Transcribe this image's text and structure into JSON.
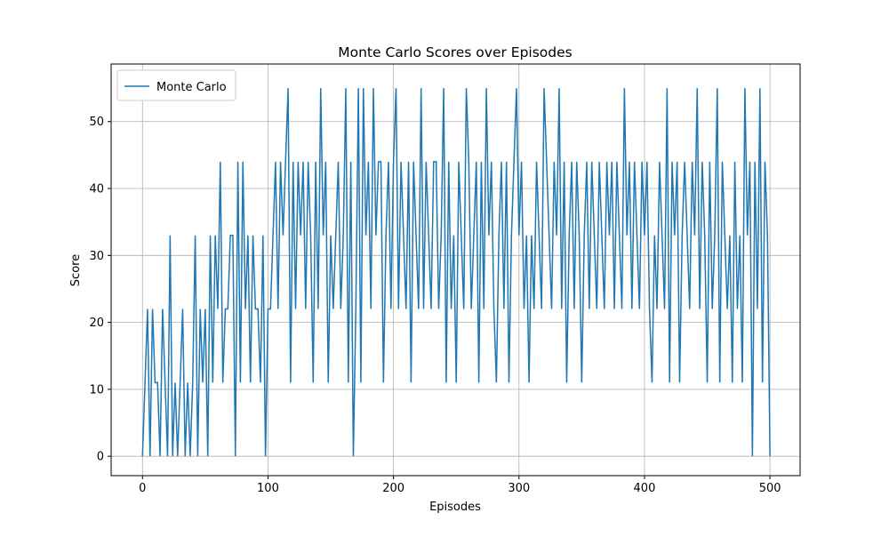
{
  "chart_data": {
    "type": "line",
    "title": "Monte Carlo Scores over Episodes",
    "xlabel": "Episodes",
    "ylabel": "Score",
    "x": [
      0,
      2,
      4,
      6,
      8,
      10,
      12,
      14,
      16,
      18,
      20,
      22,
      24,
      26,
      28,
      30,
      32,
      34,
      36,
      38,
      40,
      42,
      44,
      46,
      48,
      50,
      52,
      54,
      56,
      58,
      60,
      62,
      64,
      66,
      68,
      70,
      72,
      74,
      76,
      78,
      80,
      82,
      84,
      86,
      88,
      90,
      92,
      94,
      96,
      98,
      100,
      102,
      104,
      106,
      108,
      110,
      112,
      114,
      116,
      118,
      120,
      122,
      124,
      126,
      128,
      130,
      132,
      134,
      136,
      138,
      140,
      142,
      144,
      146,
      148,
      150,
      152,
      154,
      156,
      158,
      160,
      162,
      164,
      166,
      168,
      170,
      172,
      174,
      176,
      178,
      180,
      182,
      184,
      186,
      188,
      190,
      192,
      194,
      196,
      198,
      200,
      202,
      204,
      206,
      208,
      210,
      212,
      214,
      216,
      218,
      220,
      222,
      224,
      226,
      228,
      230,
      232,
      234,
      236,
      238,
      240,
      242,
      244,
      246,
      248,
      250,
      252,
      254,
      256,
      258,
      260,
      262,
      264,
      266,
      268,
      270,
      272,
      274,
      276,
      278,
      280,
      282,
      284,
      286,
      288,
      290,
      292,
      294,
      296,
      298,
      300,
      302,
      304,
      306,
      308,
      310,
      312,
      314,
      316,
      318,
      320,
      322,
      324,
      326,
      328,
      330,
      332,
      334,
      336,
      338,
      340,
      342,
      344,
      346,
      348,
      350,
      352,
      354,
      356,
      358,
      360,
      362,
      364,
      366,
      368,
      370,
      372,
      374,
      376,
      378,
      380,
      382,
      384,
      386,
      388,
      390,
      392,
      394,
      396,
      398,
      400,
      402,
      404,
      406,
      408,
      410,
      412,
      414,
      416,
      418,
      420,
      422,
      424,
      426,
      428,
      430,
      432,
      434,
      436,
      438,
      440,
      442,
      444,
      446,
      448,
      450,
      452,
      454,
      456,
      458,
      460,
      462,
      464,
      466,
      468,
      470,
      472,
      474,
      476,
      478,
      480,
      482,
      484,
      486,
      488,
      490,
      492,
      494,
      496,
      498,
      500
    ],
    "series": [
      {
        "name": "Monte Carlo",
        "color": "#1f77b4",
        "values": [
          0,
          11,
          22,
          0,
          22,
          11,
          11,
          0,
          22,
          11,
          0,
          33,
          0,
          11,
          0,
          11,
          22,
          0,
          11,
          0,
          11,
          33,
          0,
          22,
          11,
          22,
          0,
          33,
          11,
          33,
          22,
          44,
          11,
          22,
          22,
          33,
          33,
          0,
          44,
          11,
          44,
          22,
          33,
          11,
          33,
          22,
          22,
          11,
          33,
          0,
          22,
          22,
          33,
          44,
          22,
          44,
          33,
          44,
          55,
          11,
          44,
          22,
          44,
          33,
          44,
          22,
          44,
          33,
          11,
          44,
          22,
          55,
          33,
          44,
          11,
          33,
          22,
          33,
          44,
          22,
          33,
          55,
          11,
          44,
          0,
          22,
          55,
          11,
          55,
          33,
          44,
          22,
          55,
          33,
          44,
          44,
          11,
          33,
          44,
          22,
          44,
          55,
          22,
          44,
          33,
          22,
          44,
          11,
          44,
          33,
          22,
          55,
          22,
          44,
          33,
          22,
          44,
          44,
          22,
          33,
          55,
          11,
          44,
          22,
          33,
          11,
          44,
          33,
          22,
          55,
          44,
          22,
          33,
          44,
          11,
          44,
          22,
          55,
          33,
          44,
          22,
          11,
          33,
          44,
          22,
          44,
          11,
          33,
          44,
          55,
          33,
          44,
          22,
          33,
          11,
          33,
          22,
          44,
          33,
          22,
          55,
          44,
          33,
          22,
          44,
          33,
          55,
          22,
          44,
          11,
          33,
          44,
          22,
          44,
          33,
          11,
          33,
          44,
          22,
          44,
          33,
          22,
          44,
          33,
          22,
          44,
          33,
          44,
          22,
          44,
          33,
          22,
          55,
          33,
          44,
          22,
          44,
          33,
          22,
          44,
          33,
          44,
          22,
          11,
          33,
          22,
          44,
          33,
          22,
          55,
          11,
          44,
          33,
          44,
          11,
          33,
          44,
          33,
          22,
          44,
          33,
          55,
          22,
          44,
          33,
          11,
          44,
          22,
          33,
          55,
          11,
          44,
          33,
          22,
          33,
          11,
          44,
          22,
          33,
          11,
          55,
          33,
          44,
          0,
          44,
          22,
          55,
          11,
          44,
          33,
          0
        ]
      }
    ],
    "xlim": [
      -25,
      524
    ],
    "ylim": [
      -2.9,
      58.6
    ],
    "xticks": [
      0,
      100,
      200,
      300,
      400,
      500
    ],
    "yticks": [
      0,
      10,
      20,
      30,
      40,
      50
    ],
    "grid": true,
    "legend": "upper left"
  }
}
